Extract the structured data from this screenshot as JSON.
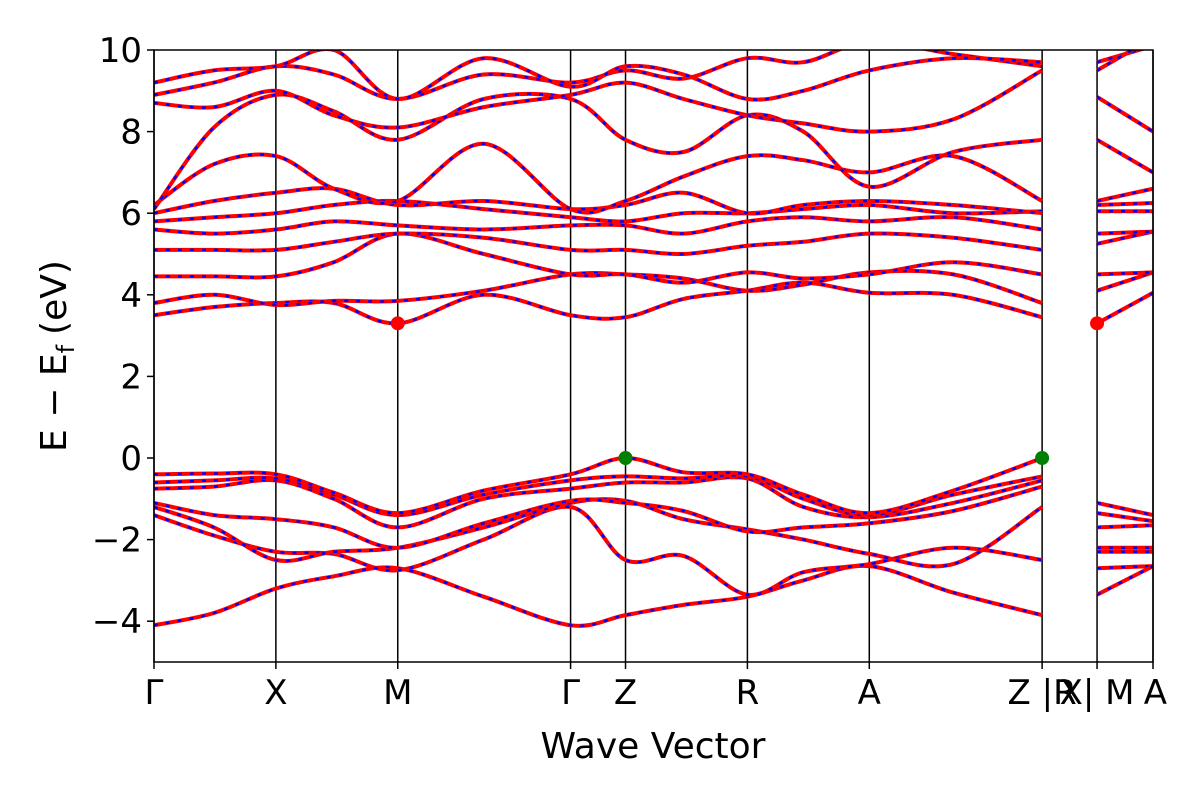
{
  "chart_data": {
    "type": "line",
    "title": "",
    "xlabel": "Wave Vector",
    "ylabel": "E − E_f (eV)",
    "ylabel_parts": {
      "main": "E − E",
      "sub": "f",
      "unit": "(eV)"
    },
    "ylim": [
      -5,
      10
    ],
    "y_ticks": [
      -4,
      -2,
      0,
      2,
      4,
      6,
      8,
      10
    ],
    "y_tick_labels": [
      "−4",
      "−2",
      "0",
      "2",
      "4",
      "6",
      "8",
      "10"
    ],
    "x_range": [
      0,
      1
    ],
    "kpoint_positions": [
      0,
      0.122,
      0.244,
      0.417,
      0.472,
      0.594,
      0.716,
      0.889,
      0.944,
      1.0
    ],
    "kpoint_labels": [
      {
        "text": "Γ",
        "x": 0
      },
      {
        "text": "X",
        "x": 0.122
      },
      {
        "text": "M",
        "x": 0.244
      },
      {
        "text": "Γ",
        "x": 0.417
      },
      {
        "text": "Z",
        "x": 0.472
      },
      {
        "text": "R",
        "x": 0.594
      },
      {
        "text": "A",
        "x": 0.716
      },
      {
        "text": "Z |R",
        "x": 0.889
      },
      {
        "text": "X| M",
        "x": 0.944
      },
      {
        "text": "A",
        "x": 1.0
      }
    ],
    "discontinuities": [
      0.889,
      0.944
    ],
    "series_colors": {
      "primary": "#ff0000",
      "overlay": "#0000ff"
    },
    "extrema": [
      {
        "kind": "cbm",
        "x": 0.244,
        "y": 3.3,
        "color": "#ff0000"
      },
      {
        "kind": "cbm",
        "x": 0.944,
        "y": 3.3,
        "color": "#ff0000"
      },
      {
        "kind": "vbm",
        "x": 0.472,
        "y": 0.0,
        "color": "#008000"
      },
      {
        "kind": "vbm",
        "x": 0.889,
        "y": 0.0,
        "color": "#008000"
      }
    ],
    "bands": [
      {
        "name": "v1",
        "x": [
          0,
          0.06,
          0.122,
          0.18,
          0.244,
          0.33,
          0.417,
          0.472,
          0.53,
          0.594,
          0.65,
          0.716,
          0.8,
          0.889,
          0.944,
          1.0
        ],
        "y": [
          -4.1,
          -3.8,
          -3.2,
          -2.9,
          -2.7,
          -3.4,
          -4.1,
          -3.85,
          -3.6,
          -3.4,
          -3.0,
          -2.65,
          -3.3,
          -3.85,
          -2.7,
          -2.65
        ]
      },
      {
        "name": "v2",
        "x": [
          0,
          0.06,
          0.122,
          0.18,
          0.244,
          0.33,
          0.417,
          0.472,
          0.53,
          0.594,
          0.65,
          0.716,
          0.8,
          0.889,
          0.944,
          1.0
        ],
        "y": [
          -1.4,
          -1.9,
          -2.3,
          -2.35,
          -2.75,
          -2.0,
          -1.2,
          -2.5,
          -2.4,
          -3.35,
          -2.8,
          -2.6,
          -2.2,
          -2.5,
          -3.35,
          -2.65
        ]
      },
      {
        "name": "v3",
        "x": [
          0,
          0.06,
          0.122,
          0.18,
          0.244,
          0.33,
          0.417,
          0.472,
          0.53,
          0.594,
          0.65,
          0.716,
          0.8,
          0.889,
          0.944,
          1.0
        ],
        "y": [
          -1.2,
          -1.7,
          -2.5,
          -2.3,
          -2.2,
          -1.7,
          -1.1,
          -1.05,
          -1.5,
          -1.75,
          -2.0,
          -2.35,
          -2.6,
          -1.2,
          -2.3,
          -2.3
        ]
      },
      {
        "name": "v4",
        "x": [
          0,
          0.06,
          0.122,
          0.18,
          0.244,
          0.33,
          0.417,
          0.472,
          0.53,
          0.594,
          0.65,
          0.716,
          0.8,
          0.889,
          0.944,
          1.0
        ],
        "y": [
          -1.1,
          -1.4,
          -1.5,
          -1.7,
          -2.2,
          -1.6,
          -1.05,
          -1.1,
          -1.3,
          -1.8,
          -1.7,
          -1.6,
          -1.3,
          -0.7,
          -2.2,
          -2.2
        ]
      },
      {
        "name": "v5",
        "x": [
          0,
          0.06,
          0.122,
          0.18,
          0.244,
          0.33,
          0.417,
          0.472,
          0.53,
          0.594,
          0.65,
          0.716,
          0.8,
          0.889,
          0.944,
          1.0
        ],
        "y": [
          -0.75,
          -0.7,
          -0.55,
          -1.0,
          -1.7,
          -1.0,
          -0.75,
          -0.6,
          -0.6,
          -0.5,
          -1.2,
          -1.45,
          -1.1,
          -0.55,
          -1.7,
          -1.65
        ]
      },
      {
        "name": "v6",
        "x": [
          0,
          0.06,
          0.122,
          0.18,
          0.244,
          0.33,
          0.417,
          0.472,
          0.53,
          0.594,
          0.65,
          0.716,
          0.8,
          0.889,
          0.944,
          1.0
        ],
        "y": [
          -0.6,
          -0.55,
          -0.5,
          -0.9,
          -1.4,
          -0.9,
          -0.55,
          -0.45,
          -0.5,
          -0.45,
          -1.0,
          -1.4,
          -0.9,
          -0.45,
          -1.35,
          -1.55
        ]
      },
      {
        "name": "v7",
        "x": [
          0,
          0.06,
          0.122,
          0.18,
          0.244,
          0.33,
          0.417,
          0.472,
          0.53,
          0.594,
          0.65,
          0.716,
          0.8,
          0.889,
          0.944,
          1.0
        ],
        "y": [
          -0.4,
          -0.38,
          -0.4,
          -0.85,
          -1.35,
          -0.8,
          -0.4,
          0.0,
          -0.35,
          -0.4,
          -0.9,
          -1.35,
          -0.8,
          0.0,
          -1.1,
          -1.4
        ]
      },
      {
        "name": "c1",
        "x": [
          0,
          0.06,
          0.122,
          0.18,
          0.244,
          0.33,
          0.417,
          0.472,
          0.53,
          0.594,
          0.65,
          0.716,
          0.8,
          0.889,
          0.944,
          1.0
        ],
        "y": [
          3.5,
          3.7,
          3.8,
          3.8,
          3.3,
          4.0,
          3.5,
          3.45,
          3.9,
          4.1,
          4.3,
          4.05,
          4.0,
          3.45,
          3.3,
          4.05
        ]
      },
      {
        "name": "c2",
        "x": [
          0,
          0.06,
          0.122,
          0.18,
          0.244,
          0.33,
          0.417,
          0.472,
          0.53,
          0.594,
          0.65,
          0.716,
          0.8,
          0.889,
          0.944,
          1.0
        ],
        "y": [
          3.8,
          4.0,
          3.75,
          3.85,
          3.85,
          4.1,
          4.5,
          4.5,
          4.4,
          4.1,
          4.25,
          4.55,
          4.5,
          3.8,
          4.1,
          4.55
        ]
      },
      {
        "name": "c3",
        "x": [
          0,
          0.06,
          0.122,
          0.18,
          0.244,
          0.33,
          0.417,
          0.472,
          0.53,
          0.594,
          0.65,
          0.716,
          0.8,
          0.889,
          0.944,
          1.0
        ],
        "y": [
          4.45,
          4.45,
          4.45,
          4.8,
          5.5,
          5.0,
          4.5,
          4.5,
          4.3,
          4.55,
          4.4,
          4.5,
          4.8,
          4.5,
          4.5,
          4.55
        ]
      },
      {
        "name": "c4",
        "x": [
          0,
          0.06,
          0.122,
          0.18,
          0.244,
          0.33,
          0.417,
          0.472,
          0.53,
          0.594,
          0.65,
          0.716,
          0.8,
          0.889,
          0.944,
          1.0
        ],
        "y": [
          5.1,
          5.1,
          5.1,
          5.3,
          5.5,
          5.4,
          5.1,
          5.1,
          5.0,
          5.2,
          5.3,
          5.5,
          5.4,
          5.1,
          5.25,
          5.55
        ]
      },
      {
        "name": "c5",
        "x": [
          0,
          0.06,
          0.122,
          0.18,
          0.244,
          0.33,
          0.417,
          0.472,
          0.53,
          0.594,
          0.65,
          0.716,
          0.8,
          0.889,
          0.944,
          1.0
        ],
        "y": [
          5.6,
          5.5,
          5.6,
          5.8,
          5.7,
          5.6,
          5.7,
          5.7,
          5.5,
          5.8,
          5.9,
          5.8,
          5.9,
          5.6,
          5.5,
          5.55
        ]
      },
      {
        "name": "c6",
        "x": [
          0,
          0.06,
          0.122,
          0.18,
          0.244,
          0.33,
          0.417,
          0.472,
          0.53,
          0.594,
          0.65,
          0.716,
          0.8,
          0.889,
          0.944,
          1.0
        ],
        "y": [
          5.8,
          5.9,
          6.0,
          6.2,
          6.3,
          6.1,
          5.9,
          5.8,
          6.0,
          6.0,
          6.1,
          6.2,
          6.0,
          6.05,
          6.05,
          6.05
        ]
      },
      {
        "name": "c7",
        "x": [
          0,
          0.06,
          0.122,
          0.18,
          0.244,
          0.33,
          0.417,
          0.472,
          0.53,
          0.594,
          0.65,
          0.716,
          0.8,
          0.889,
          0.944,
          1.0
        ],
        "y": [
          6.0,
          6.3,
          6.5,
          6.6,
          6.2,
          6.3,
          6.1,
          6.2,
          6.5,
          6.0,
          6.2,
          6.3,
          6.2,
          6.0,
          6.2,
          6.25
        ]
      },
      {
        "name": "c8",
        "x": [
          0,
          0.06,
          0.122,
          0.18,
          0.244,
          0.33,
          0.417,
          0.472,
          0.53,
          0.594,
          0.65,
          0.716,
          0.8,
          0.889,
          0.944,
          1.0
        ],
        "y": [
          6.2,
          7.2,
          7.4,
          6.6,
          6.3,
          7.7,
          6.1,
          6.3,
          6.9,
          7.4,
          7.3,
          7.0,
          7.4,
          6.3,
          6.3,
          6.6
        ]
      },
      {
        "name": "c9",
        "x": [
          0,
          0.06,
          0.122,
          0.18,
          0.244,
          0.33,
          0.417,
          0.472,
          0.53,
          0.594,
          0.65,
          0.716,
          0.8,
          0.889,
          0.944,
          1.0
        ],
        "y": [
          6.1,
          8.1,
          8.9,
          8.5,
          7.8,
          8.8,
          8.8,
          7.8,
          7.5,
          8.4,
          8.0,
          6.65,
          7.5,
          7.8,
          7.8,
          7.0
        ]
      },
      {
        "name": "c10",
        "x": [
          0,
          0.06,
          0.122,
          0.18,
          0.244,
          0.33,
          0.417,
          0.472,
          0.53,
          0.594,
          0.65,
          0.716,
          0.8,
          0.889,
          0.944,
          1.0
        ],
        "y": [
          8.7,
          8.6,
          9.0,
          8.4,
          8.1,
          8.6,
          8.9,
          9.2,
          8.8,
          8.4,
          8.2,
          8.0,
          8.3,
          9.5,
          8.85,
          8.0
        ]
      },
      {
        "name": "c11",
        "x": [
          0,
          0.06,
          0.122,
          0.18,
          0.244,
          0.33,
          0.417,
          0.472,
          0.53,
          0.594,
          0.65,
          0.716,
          0.8,
          0.889,
          0.944,
          1.0
        ],
        "y": [
          8.9,
          9.2,
          9.6,
          9.4,
          8.8,
          9.4,
          9.2,
          9.5,
          9.3,
          9.8,
          9.7,
          10.2,
          9.9,
          9.6,
          9.7,
          10.1
        ]
      },
      {
        "name": "c12",
        "x": [
          0,
          0.06,
          0.122,
          0.18,
          0.244,
          0.33,
          0.417,
          0.472,
          0.53,
          0.594,
          0.65,
          0.716,
          0.8,
          0.889,
          0.944,
          1.0
        ],
        "y": [
          9.2,
          9.5,
          9.6,
          10.0,
          8.8,
          9.8,
          9.1,
          9.6,
          9.4,
          8.8,
          9.0,
          9.5,
          9.8,
          9.7,
          9.5,
          10.3
        ]
      }
    ]
  }
}
